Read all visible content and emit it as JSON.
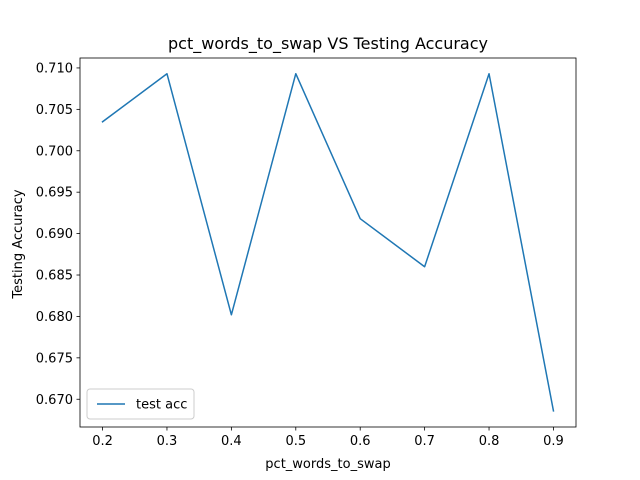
{
  "chart_data": {
    "type": "line",
    "title": "pct_words_to_swap VS Testing Accuracy",
    "xlabel": "pct_words_to_swap",
    "ylabel": "Testing Accuracy",
    "x": [
      0.2,
      0.3,
      0.4,
      0.5,
      0.6,
      0.7,
      0.8,
      0.9
    ],
    "x_tick_labels": [
      "0.2",
      "0.3",
      "0.4",
      "0.5",
      "0.6",
      "0.7",
      "0.8",
      "0.9"
    ],
    "y_tick_labels": [
      "0.670",
      "0.675",
      "0.680",
      "0.685",
      "0.690",
      "0.695",
      "0.700",
      "0.705",
      "0.710"
    ],
    "y_ticks": [
      0.67,
      0.675,
      0.68,
      0.685,
      0.69,
      0.695,
      0.7,
      0.705,
      0.71
    ],
    "xlim": [
      0.165,
      0.935
    ],
    "ylim": [
      0.66665,
      0.7112
    ],
    "series": [
      {
        "name": "test acc",
        "color": "#1f77b4",
        "values": [
          0.7035,
          0.7093,
          0.6802,
          0.7093,
          0.6918,
          0.686,
          0.7093,
          0.6686
        ]
      }
    ],
    "legend_position": "lower-left",
    "grid": false
  }
}
